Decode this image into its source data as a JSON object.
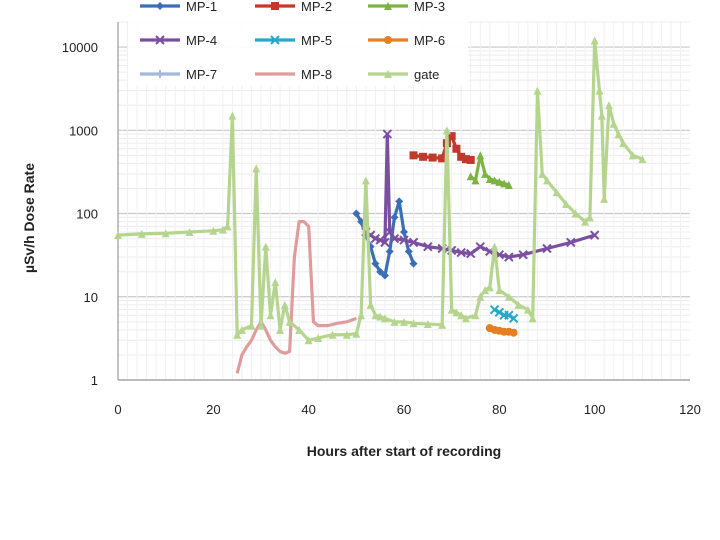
{
  "chart_data": {
    "type": "line",
    "title": "",
    "xlabel": "Hours after start of recording",
    "ylabel": "µSv/h Dose Rate",
    "xlim": [
      0,
      120
    ],
    "ylim": [
      1,
      20000
    ],
    "yscale": "log",
    "x_ticks": [
      0,
      20,
      40,
      60,
      80,
      100,
      120
    ],
    "y_ticks": [
      1,
      10,
      100,
      1000,
      10000
    ],
    "x_tick_labels": [
      "0",
      "20",
      "40",
      "60",
      "80",
      "100",
      "120"
    ],
    "y_tick_labels": [
      "1",
      "10",
      "100",
      "1000",
      "10000"
    ],
    "grid": true,
    "legend_position": "top-left",
    "series": [
      {
        "name": "MP-1",
        "color": "#3a6fb8",
        "marker": "diamond",
        "x": [
          50,
          51,
          52,
          53,
          54,
          55,
          56,
          57,
          58,
          59,
          60,
          61,
          62
        ],
        "y": [
          100,
          80,
          55,
          40,
          25,
          20,
          18,
          35,
          90,
          140,
          60,
          35,
          25
        ]
      },
      {
        "name": "MP-2",
        "color": "#c0392b",
        "marker": "square",
        "x": [
          62,
          64,
          66,
          68,
          69,
          70,
          71,
          72,
          73,
          74
        ],
        "y": [
          500,
          480,
          470,
          460,
          700,
          850,
          600,
          480,
          450,
          440
        ]
      },
      {
        "name": "MP-3",
        "color": "#7cb342",
        "marker": "triangle",
        "x": [
          74,
          75,
          76,
          77,
          78,
          79,
          80,
          81,
          82
        ],
        "y": [
          280,
          250,
          500,
          300,
          260,
          250,
          240,
          230,
          220
        ]
      },
      {
        "name": "MP-4",
        "color": "#7b4fa0",
        "marker": "x",
        "x": [
          52,
          53,
          54,
          55,
          56,
          56.5,
          57,
          58,
          60,
          62,
          65,
          68,
          70,
          72,
          74,
          76,
          78,
          80,
          82,
          85,
          90,
          95,
          100
        ],
        "y": [
          60,
          55,
          50,
          48,
          45,
          900,
          60,
          50,
          48,
          45,
          40,
          38,
          36,
          34,
          33,
          40,
          35,
          32,
          30,
          32,
          38,
          45,
          55
        ]
      },
      {
        "name": "MP-5",
        "color": "#26a9c8",
        "marker": "x",
        "x": [
          79,
          80,
          81,
          82,
          83
        ],
        "y": [
          7,
          6.5,
          6,
          6,
          5.5
        ]
      },
      {
        "name": "MP-6",
        "color": "#e67e22",
        "marker": "circle",
        "x": [
          78,
          79,
          80,
          81,
          82,
          83
        ],
        "y": [
          4.2,
          4,
          3.9,
          3.8,
          3.8,
          3.7
        ]
      },
      {
        "name": "MP-7",
        "color": "#9fb8dc",
        "marker": "cross",
        "x": [],
        "y": []
      },
      {
        "name": "MP-8",
        "color": "#e09c9c",
        "marker": "line",
        "x": [
          25,
          26,
          27,
          28,
          29,
          30,
          31,
          32,
          33,
          34,
          35,
          36,
          37,
          38,
          39,
          40,
          41,
          42,
          44,
          46,
          48,
          50
        ],
        "y": [
          1.2,
          2,
          2.5,
          3,
          4,
          5,
          4,
          3,
          2.5,
          2.2,
          2.1,
          2.2,
          30,
          80,
          80,
          70,
          5,
          4.5,
          4.5,
          4.8,
          5,
          5.5
        ]
      },
      {
        "name": "gate",
        "color": "#b5d58e",
        "marker": "triangle",
        "x": [
          0,
          5,
          10,
          15,
          20,
          22,
          23,
          24,
          25,
          26,
          28,
          29,
          30,
          31,
          32,
          33,
          34,
          35,
          36,
          38,
          40,
          42,
          45,
          48,
          50,
          51,
          52,
          53,
          54,
          55,
          56,
          58,
          60,
          62,
          65,
          68,
          69,
          70,
          71,
          72,
          73,
          75,
          76,
          77,
          78,
          79,
          80,
          82,
          84,
          86,
          87,
          88,
          89,
          90,
          92,
          94,
          96,
          98,
          99,
          100,
          101,
          101.5,
          102,
          103,
          104,
          105,
          106,
          108,
          110
        ],
        "y": [
          55,
          57,
          58,
          60,
          62,
          64,
          70,
          1500,
          3.5,
          4,
          4.5,
          350,
          4.5,
          40,
          6,
          15,
          4,
          8,
          5,
          4,
          3,
          3.2,
          3.5,
          3.5,
          3.6,
          6,
          250,
          8,
          6,
          5.8,
          5.5,
          5,
          5,
          4.8,
          4.7,
          4.6,
          1000,
          7,
          6.5,
          6,
          5.5,
          6,
          10,
          12,
          13,
          40,
          12,
          10,
          8,
          7,
          5.5,
          3000,
          300,
          250,
          180,
          130,
          100,
          80,
          90,
          12000,
          3000,
          1500,
          150,
          2000,
          1200,
          900,
          700,
          500,
          450
        ]
      }
    ]
  }
}
